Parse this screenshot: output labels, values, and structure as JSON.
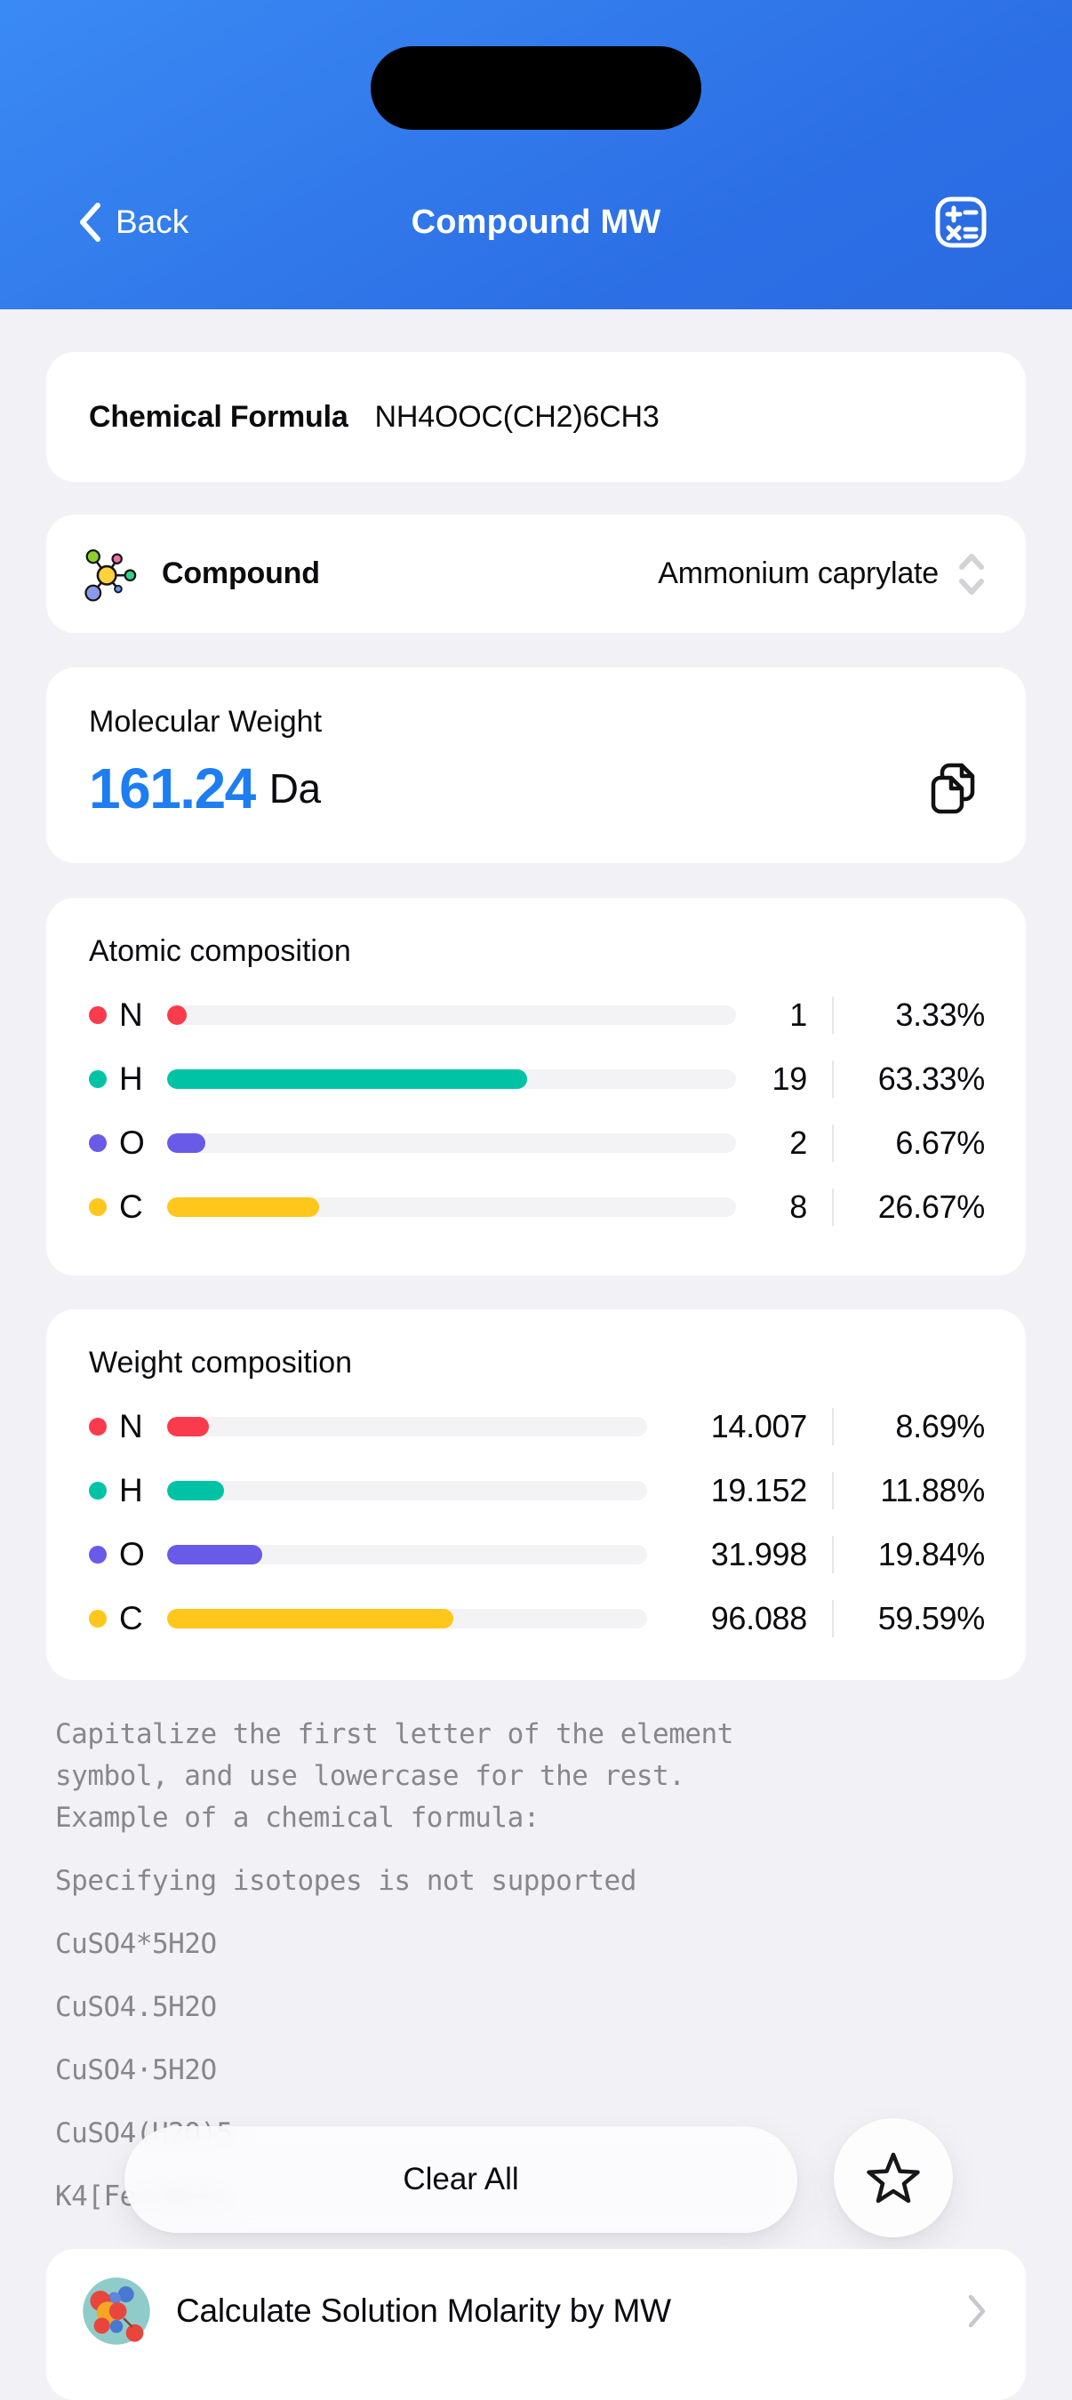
{
  "header": {
    "back_label": "Back",
    "title": "Compound MW"
  },
  "formula_card": {
    "label": "Chemical Formula",
    "value": "NH4OOC(CH2)6CH3"
  },
  "compound_card": {
    "label": "Compound",
    "value": "Ammonium caprylate"
  },
  "mw_card": {
    "label": "Molecular Weight",
    "value": "161.24",
    "unit": "Da"
  },
  "atomic": {
    "title": "Atomic composition",
    "rows": [
      {
        "el": "N",
        "value": "1",
        "pct": "3.33%",
        "pct_num": 3.33,
        "color": "#FA3B4C"
      },
      {
        "el": "H",
        "value": "19",
        "pct": "63.33%",
        "pct_num": 63.33,
        "color": "#00C3A5"
      },
      {
        "el": "O",
        "value": "2",
        "pct": "6.67%",
        "pct_num": 6.67,
        "color": "#6A5AE8"
      },
      {
        "el": "C",
        "value": "8",
        "pct": "26.67%",
        "pct_num": 26.67,
        "color": "#FFC61C"
      }
    ]
  },
  "weight": {
    "title": "Weight composition",
    "rows": [
      {
        "el": "N",
        "value": "14.007",
        "pct": "8.69%",
        "pct_num": 8.69,
        "color": "#FA3B4C"
      },
      {
        "el": "H",
        "value": "19.152",
        "pct": "11.88%",
        "pct_num": 11.88,
        "color": "#00C3A5"
      },
      {
        "el": "O",
        "value": "31.998",
        "pct": "19.84%",
        "pct_num": 19.84,
        "color": "#6A5AE8"
      },
      {
        "el": "C",
        "value": "96.088",
        "pct": "59.59%",
        "pct_num": 59.59,
        "color": "#FFC61C"
      }
    ]
  },
  "help": {
    "paragraph": [
      "Capitalize the first letter of the element",
      "symbol, and use lowercase for the rest.",
      "Example of a chemical formula:"
    ],
    "note": "Specifying isotopes is not supported",
    "examples": [
      "CuSO4*5H2O",
      "CuSO4.5H2O",
      "CuSO4·5H2O",
      "CuSO4(H2O)5",
      "K4[Fe(CN)6]"
    ]
  },
  "actions": {
    "clear_all": "Clear All"
  },
  "footer_link": {
    "label": "Calculate Solution Molarity by MW"
  },
  "colors": {
    "accent_blue": "#1D7DF1",
    "header_top": "#3A8AF4",
    "header_bottom": "#2A6AE1",
    "nitrogen": "#FA3B4C",
    "hydrogen": "#00C3A5",
    "oxygen": "#6A5AE8",
    "carbon": "#FFC61C"
  },
  "icons": {
    "back": "chevron-left",
    "header_action": "calculator",
    "compound": "molecule",
    "selector": "chevron-up-down",
    "copy": "copy-pages",
    "favorite": "star-outline",
    "molarity_link": "molecule-cluster",
    "link_arrow": "chevron-right"
  }
}
